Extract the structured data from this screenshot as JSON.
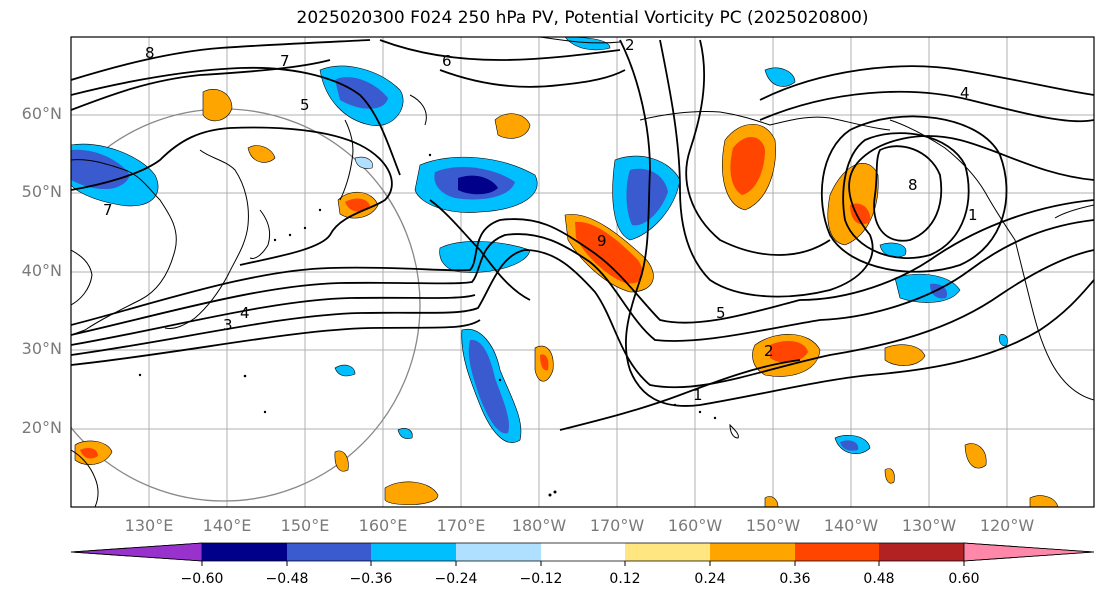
{
  "title": "2025020300 F024 250 hPa PV, Potential Vorticity PC (2025020800)",
  "axes": {
    "lat_labels": [
      "60°N",
      "50°N",
      "40°N",
      "30°N",
      "20°N"
    ],
    "lon_labels": [
      "130°E",
      "140°E",
      "150°E",
      "160°E",
      "170°E",
      "180°W",
      "170°W",
      "160°W",
      "150°W",
      "140°W",
      "130°W",
      "120°W"
    ]
  },
  "contour_labels": [
    "8",
    "7",
    "6",
    "5",
    "4",
    "3",
    "2",
    "1",
    "7",
    "4",
    "5",
    "8",
    "9",
    "2",
    "1"
  ],
  "colorbar": {
    "ticks": [
      "−0.60",
      "−0.48",
      "−0.36",
      "−0.24",
      "−0.12",
      "0.12",
      "0.24",
      "0.36",
      "0.48",
      "0.60"
    ],
    "colors": [
      "#9932cc",
      "#00008b",
      "#3a5bd0",
      "#00bfff",
      "#b0e0ff",
      "#ffffff",
      "#ffe680",
      "#ffa500",
      "#ff4500",
      "#b22222",
      "#ff88aa"
    ]
  },
  "colors": {
    "grid": "#b0b0b0",
    "coast": "#000000",
    "contour": "#000000"
  }
}
